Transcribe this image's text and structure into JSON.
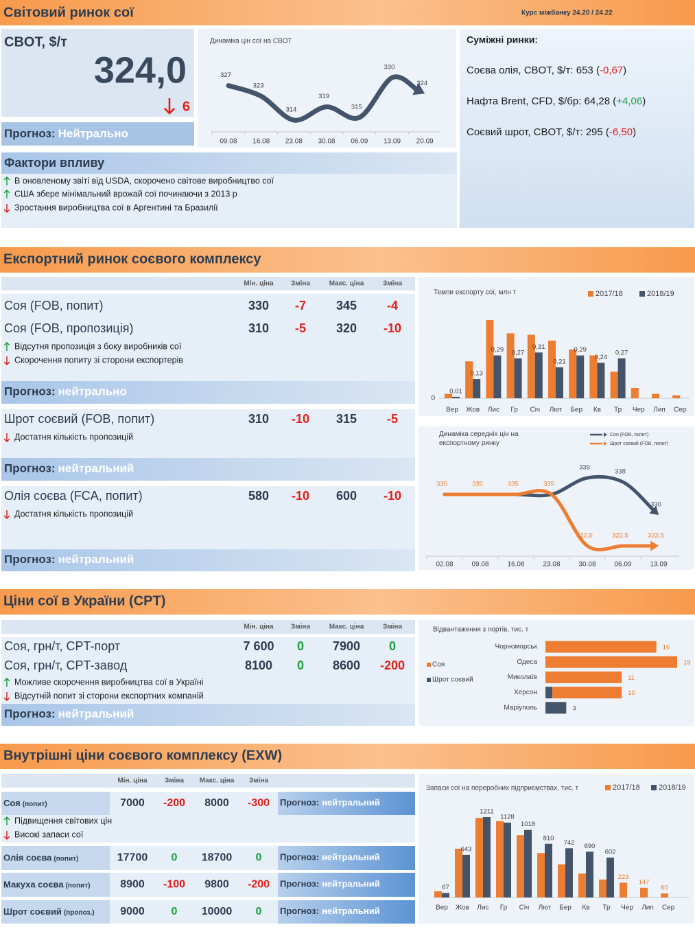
{
  "header": {
    "title": "Світовий ринок сої",
    "rate": "Курс міжбанку 24.20 / 24.22"
  },
  "cbot": {
    "label": "CBOT, $/т",
    "price": "324,0",
    "change": 6,
    "change_direction": "down",
    "forecast_label": "Прогноз:",
    "forecast": "Нейтрально"
  },
  "related": {
    "title": "Суміжні ринки:",
    "items": [
      {
        "text": "Соєва олія, CBOT, $/т: 653 (",
        "change": "-0,67",
        "close": ")"
      },
      {
        "text": "Нафта Brent, CFD, $/бр: 64,28  (",
        "change": "+4,06",
        "close": ")"
      },
      {
        "text": "Соєвий шрот, CBOT, $/т: 295 (",
        "change": "-6,50",
        "close": ")"
      }
    ]
  },
  "factors": {
    "title": "Фактори впливу",
    "items": [
      {
        "direction": "up",
        "text": "В оновленому звіті від USDA, скорочено світове виробництво сої"
      },
      {
        "direction": "up",
        "text": "США збере мінімальний врожай сої починаючи з 2013 р"
      },
      {
        "direction": "down",
        "text": "Зростання виробництва сої в Аргентині та Бразилії"
      }
    ]
  },
  "export": {
    "title": "Експортний ринок соєвого комплексу",
    "columns": [
      "Мін. ціна",
      "Зміна",
      "Макс. ціна",
      "Зміна"
    ],
    "blocks": [
      {
        "rows": [
          {
            "name": "Соя (FOB, попит)",
            "cells": [
              330,
              -7,
              345,
              -4
            ]
          },
          {
            "name": "Соя (FOB, пропозиція)",
            "cells": [
              310,
              -5,
              320,
              -10
            ]
          }
        ],
        "factors": [
          {
            "direction": "up",
            "text": "Відсутня пропозиція з боку виробників сої"
          },
          {
            "direction": "down",
            "text": "Скорочення попиту зі сторони експортерів"
          }
        ],
        "forecast_label": "Прогноз:",
        "forecast": "нейтрально"
      },
      {
        "rows": [
          {
            "name": "Шрот соєвий (FOB, попит)",
            "cells": [
              310,
              -10,
              315,
              -5
            ]
          }
        ],
        "factors": [
          {
            "direction": "down",
            "text": "Достатня кількість пропозицій"
          }
        ],
        "forecast_label": "Прогноз:",
        "forecast": "нейтральний"
      },
      {
        "rows": [
          {
            "name": "Олія соєва (FCA, попит)",
            "cells": [
              580,
              -10,
              600,
              -10
            ]
          }
        ],
        "factors": [
          {
            "direction": "down",
            "text": "Достатня кількість пропозицій"
          }
        ],
        "forecast_label": "Прогноз:",
        "forecast": "нейтральний"
      }
    ]
  },
  "ukraine": {
    "title": "Ціни сої в  України (CPT)",
    "columns": [
      "Мін. ціна",
      "Зміна",
      "Макс. ціна",
      "Зміна"
    ],
    "blocks": [
      {
        "rows": [
          {
            "name": "Соя, грн/т, CPT-порт",
            "cells": [
              "7 600",
              0,
              7900,
              0
            ]
          },
          {
            "name": "Соя, грн/т, CPT-завод",
            "cells": [
              8100,
              0,
              8600,
              -200
            ]
          }
        ],
        "factors": [
          {
            "direction": "up",
            "text": "Можливе скорочення виробництва сої в Україні"
          },
          {
            "direction": "down",
            "text": "Відсутній попит зі сторони експортних компаній"
          }
        ],
        "forecast_label": "Прогноз:",
        "forecast": "нейтральний"
      }
    ]
  },
  "domestic": {
    "title": "Внутрішні ціни соєвого комплексу (EXW)",
    "columns": [
      "Мін. ціна",
      "Зміна",
      "Макс. ціна",
      "Зміна"
    ],
    "rows": [
      {
        "name": "Соя",
        "qualifier": "(попит)",
        "cells": [
          7000,
          -200,
          8000,
          -300
        ],
        "forecast_label": "Прогноз:",
        "forecast": "нейтральний"
      },
      {
        "name": "Олія соєва",
        "qualifier": "(попит)",
        "cells": [
          17700,
          0,
          18700,
          0
        ],
        "forecast_label": "Прогноз:",
        "forecast": "нейтральний"
      },
      {
        "name": "Макуха соєва",
        "qualifier": "(попит)",
        "cells": [
          8900,
          -100,
          9800,
          -200
        ],
        "forecast_label": "Прогноз:",
        "forecast": "нейтральний"
      },
      {
        "name": "Шрот соєвий",
        "qualifier": "(пропоз.)",
        "cells": [
          9000,
          0,
          10000,
          0
        ],
        "forecast_label": "Прогноз:",
        "forecast": "нейтральний"
      }
    ],
    "factors": [
      {
        "direction": "up",
        "text": "Підвищення світових цін"
      },
      {
        "direction": "down",
        "text": "Високі запаси сої"
      }
    ]
  },
  "chart_data": [
    {
      "type": "line",
      "title": "Динаміка цін сої на CBOT",
      "categories": [
        "09.08",
        "16.08",
        "23.08",
        "30.08",
        "06.09",
        "13.09",
        "20.09"
      ],
      "values": [
        327,
        323,
        314,
        319,
        315,
        330,
        324
      ],
      "color": "#44546a"
    },
    {
      "type": "bar",
      "title": "Темпи експорту сої, млн т",
      "categories": [
        "Вер",
        "Жов",
        "Лис",
        "Гр",
        "Січ",
        "Лют",
        "Бер",
        "Кв",
        "Тр",
        "Чер",
        "Лип",
        "Сер"
      ],
      "series": [
        {
          "name": "2017/18",
          "color": "#ed7d31",
          "values": [
            0.03,
            0.25,
            0.53,
            0.44,
            0.43,
            0.39,
            0.33,
            0.29,
            0.18,
            0.07,
            0.03,
            0.02
          ]
        },
        {
          "name": "2018/19",
          "color": "#44546a",
          "values": [
            0.01,
            0.13,
            0.29,
            0.27,
            0.31,
            0.21,
            0.29,
            0.24,
            0.27,
            null,
            null,
            null
          ],
          "value_labels": [
            "0,01",
            "0,13",
            "0,29",
            "0,27",
            "0,31",
            "0,21",
            "0,29",
            "0,24",
            "0,27",
            null,
            null,
            null
          ]
        }
      ],
      "yticks": [
        0
      ],
      "legend": "top-right"
    },
    {
      "type": "line",
      "title": "Динаміка середніх цін на експортному ринку",
      "categories": [
        "02.08",
        "09.08",
        "16.08",
        "23.08",
        "30.08",
        "06.09",
        "13.09"
      ],
      "series": [
        {
          "name": "Соя (FOB, попит)",
          "color": "#44546a",
          "values": [
            335,
            335,
            335,
            335,
            339,
            338,
            330
          ],
          "value_labels": [
            null,
            null,
            null,
            null,
            "339",
            "338",
            "330"
          ]
        },
        {
          "name": "Шрот соєвий (FOB, попит)",
          "color": "#ed7d31",
          "values": [
            335,
            335,
            335,
            335,
            322.5,
            322.5,
            322.5
          ],
          "value_labels": [
            "335",
            "335",
            "335",
            "335",
            "322,5",
            "322,5",
            "322,5"
          ]
        }
      ],
      "legend": "top-right"
    },
    {
      "type": "hbar",
      "title": "Відвантаження з портів, тис. т",
      "stacked": true,
      "categories": [
        "Чорноморськ",
        "Одеса",
        "Миколаїв",
        "Херсон",
        "Маріуполь"
      ],
      "series": [
        {
          "name": "Соя",
          "color": "#ed7d31",
          "values": [
            16,
            19,
            11,
            10,
            null
          ]
        },
        {
          "name": "Шрот соєвий",
          "color": "#44546a",
          "values": [
            null,
            null,
            null,
            1,
            3
          ]
        }
      ],
      "legend": "left"
    },
    {
      "type": "bar",
      "title": "Запаси сої на переробних підприємствах, тис. т",
      "categories": [
        "Вер",
        "Жов",
        "Лис",
        "Гр",
        "Січ",
        "Лют",
        "Бер",
        "Кв",
        "Тр",
        "Чер",
        "Лип",
        "Сер"
      ],
      "series": [
        {
          "name": "2017/18",
          "color": "#ed7d31",
          "values": [
            93,
            735,
            1200,
            1150,
            940,
            670,
            500,
            360,
            270,
            223,
            147,
            60
          ],
          "value_labels": [
            null,
            null,
            null,
            null,
            null,
            null,
            null,
            null,
            null,
            "223",
            "147",
            "60"
          ]
        },
        {
          "name": "2018/19",
          "color": "#44546a",
          "values": [
            67,
            643,
            1211,
            1128,
            1018,
            810,
            742,
            690,
            602,
            null,
            null,
            null
          ],
          "value_labels": [
            "67",
            "643",
            "1211",
            "1128",
            "1018",
            "810",
            "742",
            "690",
            "602",
            null,
            null,
            null
          ]
        }
      ],
      "legend": "top-right"
    }
  ]
}
